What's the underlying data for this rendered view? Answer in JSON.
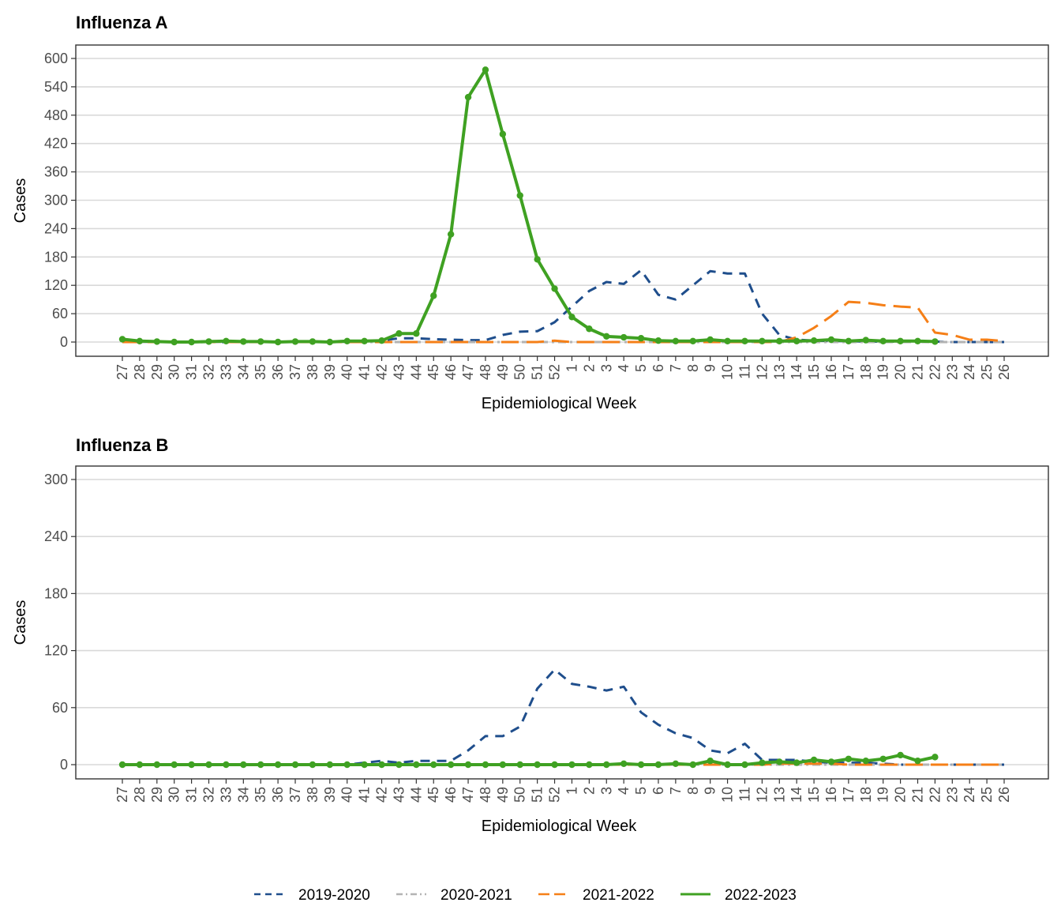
{
  "chart_data": [
    {
      "type": "line",
      "title": "Influenza A",
      "xlabel": "Epidemiological Week",
      "ylabel": "Cases",
      "ylim": [
        0,
        600
      ],
      "yticks": [
        0,
        60,
        120,
        180,
        240,
        300,
        360,
        420,
        480,
        540,
        600
      ],
      "grid": true,
      "categories": [
        "27",
        "28",
        "29",
        "30",
        "31",
        "32",
        "33",
        "34",
        "35",
        "36",
        "37",
        "38",
        "39",
        "40",
        "41",
        "42",
        "43",
        "44",
        "45",
        "46",
        "47",
        "48",
        "49",
        "50",
        "51",
        "52",
        "1",
        "2",
        "3",
        "4",
        "5",
        "6",
        "7",
        "8",
        "9",
        "10",
        "11",
        "12",
        "13",
        "14",
        "15",
        "16",
        "17",
        "18",
        "19",
        "20",
        "21",
        "22",
        "23",
        "24",
        "25",
        "26"
      ],
      "series": [
        {
          "name": "2019-2020",
          "color": "#1f4e8c",
          "style": "dashed",
          "values": [
            0,
            0,
            0,
            0,
            0,
            0,
            0,
            0,
            0,
            0,
            0,
            0,
            0,
            2,
            2,
            3,
            8,
            8,
            6,
            5,
            4,
            4,
            15,
            22,
            23,
            42,
            75,
            108,
            127,
            123,
            152,
            100,
            90,
            120,
            150,
            145,
            145,
            60,
            15,
            5,
            3,
            2,
            2,
            1,
            1,
            1,
            1,
            1,
            0,
            0,
            0,
            0
          ]
        },
        {
          "name": "2020-2021",
          "color": "#b3b3b3",
          "style": "dashdot",
          "values": [
            0,
            0,
            0,
            0,
            0,
            0,
            0,
            0,
            0,
            0,
            0,
            0,
            0,
            0,
            0,
            0,
            0,
            0,
            0,
            0,
            0,
            0,
            0,
            0,
            0,
            0,
            0,
            0,
            0,
            0,
            0,
            0,
            0,
            0,
            0,
            0,
            0,
            0,
            0,
            0,
            0,
            0,
            0,
            0,
            0,
            0,
            0,
            0,
            0,
            0,
            0,
            0
          ]
        },
        {
          "name": "2021-2022",
          "color": "#f57f17",
          "style": "longdash",
          "values": [
            0,
            0,
            0,
            0,
            0,
            0,
            0,
            0,
            0,
            0,
            0,
            0,
            0,
            0,
            0,
            0,
            0,
            0,
            0,
            0,
            0,
            0,
            0,
            0,
            0,
            3,
            0,
            0,
            0,
            0,
            0,
            0,
            0,
            0,
            0,
            0,
            0,
            0,
            0,
            10,
            30,
            55,
            85,
            83,
            78,
            75,
            73,
            20,
            15,
            5,
            5,
            2
          ]
        },
        {
          "name": "2022-2023",
          "color": "#3fa122",
          "style": "solid",
          "values": [
            6,
            2,
            1,
            0,
            0,
            1,
            2,
            1,
            1,
            0,
            1,
            1,
            0,
            2,
            2,
            3,
            18,
            18,
            98,
            228,
            518,
            576,
            440,
            310,
            175,
            113,
            53,
            28,
            12,
            10,
            8,
            3,
            2,
            2,
            5,
            2,
            2,
            2,
            2,
            2,
            3,
            5,
            2,
            4,
            2,
            2,
            2,
            1,
            null,
            null,
            null,
            null
          ]
        }
      ]
    },
    {
      "type": "line",
      "title": "Influenza B",
      "xlabel": "Epidemiological Week",
      "ylabel": "Cases",
      "ylim": [
        0,
        300
      ],
      "yticks": [
        0,
        60,
        120,
        180,
        240,
        300
      ],
      "grid": true,
      "categories": [
        "27",
        "28",
        "29",
        "30",
        "31",
        "32",
        "33",
        "34",
        "35",
        "36",
        "37",
        "38",
        "39",
        "40",
        "41",
        "42",
        "43",
        "44",
        "45",
        "46",
        "47",
        "48",
        "49",
        "50",
        "51",
        "52",
        "1",
        "2",
        "3",
        "4",
        "5",
        "6",
        "7",
        "8",
        "9",
        "10",
        "11",
        "12",
        "13",
        "14",
        "15",
        "16",
        "17",
        "18",
        "19",
        "20",
        "21",
        "22",
        "23",
        "24",
        "25",
        "26"
      ],
      "series": [
        {
          "name": "2019-2020",
          "color": "#1f4e8c",
          "style": "dashed",
          "values": [
            0,
            0,
            0,
            0,
            0,
            0,
            0,
            0,
            0,
            0,
            0,
            0,
            0,
            0,
            2,
            4,
            2,
            4,
            4,
            4,
            15,
            30,
            30,
            40,
            80,
            100,
            85,
            82,
            78,
            82,
            55,
            42,
            33,
            28,
            15,
            12,
            22,
            5,
            5,
            5,
            3,
            2,
            2,
            2,
            1,
            0,
            0,
            0,
            0,
            0,
            0,
            0
          ]
        },
        {
          "name": "2020-2021",
          "color": "#b3b3b3",
          "style": "dashdot",
          "values": [
            0,
            0,
            0,
            0,
            0,
            0,
            0,
            0,
            0,
            0,
            0,
            0,
            0,
            0,
            0,
            0,
            0,
            0,
            0,
            0,
            0,
            0,
            0,
            0,
            0,
            0,
            0,
            0,
            0,
            0,
            0,
            0,
            0,
            0,
            0,
            0,
            0,
            0,
            0,
            0,
            0,
            0,
            0,
            0,
            0,
            0,
            0,
            0,
            0,
            0,
            0,
            0
          ]
        },
        {
          "name": "2021-2022",
          "color": "#f57f17",
          "style": "longdash",
          "values": [
            0,
            0,
            0,
            0,
            0,
            0,
            0,
            0,
            0,
            0,
            0,
            0,
            0,
            0,
            0,
            0,
            0,
            0,
            0,
            0,
            0,
            0,
            0,
            0,
            0,
            0,
            0,
            0,
            0,
            0,
            0,
            0,
            0,
            0,
            0,
            0,
            0,
            0,
            1,
            1,
            1,
            1,
            0,
            0,
            0,
            0,
            0,
            0,
            0,
            0,
            0,
            0
          ]
        },
        {
          "name": "2022-2023",
          "color": "#3fa122",
          "style": "solid",
          "values": [
            0,
            0,
            0,
            0,
            0,
            0,
            0,
            0,
            0,
            0,
            0,
            0,
            0,
            0,
            0,
            0,
            0,
            0,
            0,
            0,
            0,
            0,
            0,
            0,
            0,
            0,
            0,
            0,
            0,
            1,
            0,
            0,
            1,
            0,
            4,
            0,
            0,
            2,
            3,
            2,
            5,
            3,
            6,
            4,
            6,
            10,
            4,
            8,
            null,
            null,
            null,
            null
          ]
        }
      ]
    }
  ],
  "legend": {
    "placement": "bottom",
    "items": [
      {
        "label": "2019-2020",
        "color": "#1f4e8c",
        "style": "dashed"
      },
      {
        "label": "2020-2021",
        "color": "#b3b3b3",
        "style": "dashdot"
      },
      {
        "label": "2021-2022",
        "color": "#f57f17",
        "style": "longdash"
      },
      {
        "label": "2022-2023",
        "color": "#3fa122",
        "style": "solid"
      }
    ]
  }
}
